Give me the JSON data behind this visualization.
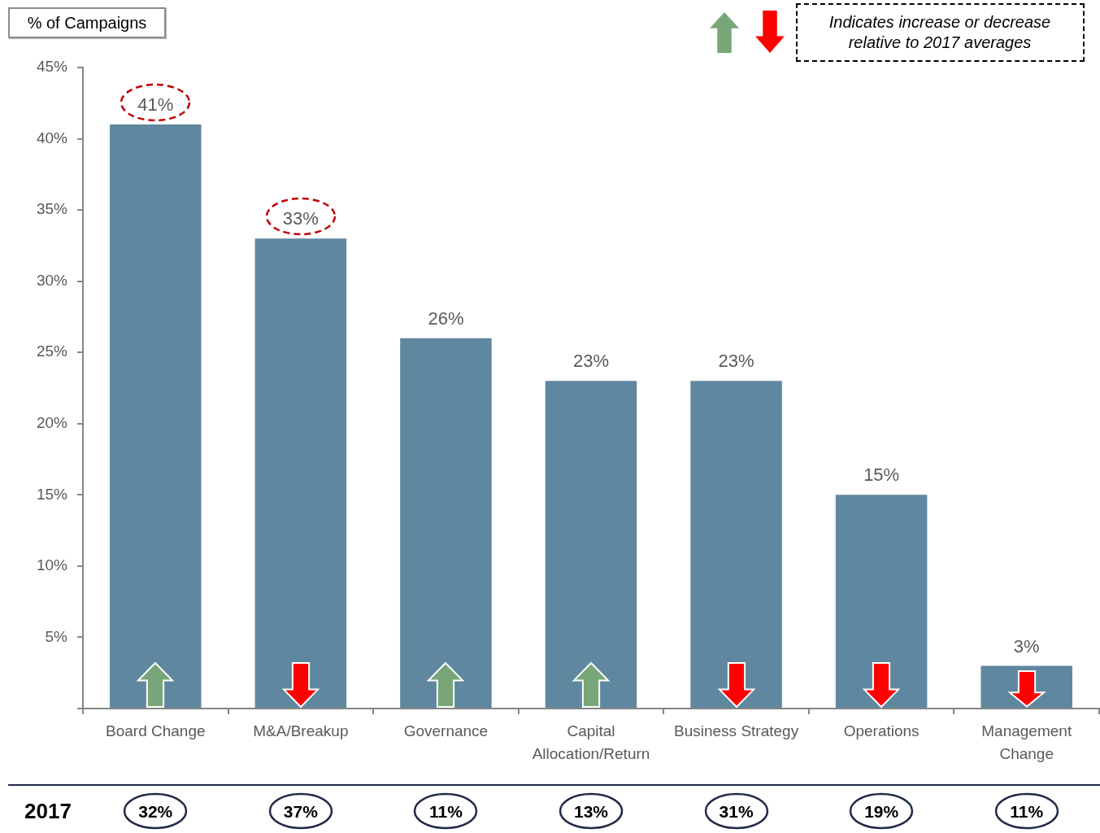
{
  "chart_data": {
    "type": "bar",
    "ylabel": "% of Campaigns",
    "categories": [
      "Board Change",
      "M&A/Breakup",
      "Governance",
      "Capital Allocation/Return",
      "Business Strategy",
      "Operations",
      "Management Change"
    ],
    "values": [
      41,
      33,
      26,
      23,
      23,
      15,
      3
    ],
    "color": "#5f87a0",
    "value_labels": [
      "41%",
      "33%",
      "26%",
      "23%",
      "23%",
      "15%",
      "3%"
    ],
    "ylim": [
      0,
      45
    ],
    "yticks": [
      {
        "value": 0,
        "label": null
      },
      {
        "value": 5,
        "label": "5%"
      },
      {
        "value": 10,
        "label": "10%"
      },
      {
        "value": 15,
        "label": "15%"
      },
      {
        "value": 20,
        "label": "20%"
      },
      {
        "value": 25,
        "label": "25%"
      },
      {
        "value": 30,
        "label": "30%"
      },
      {
        "value": 35,
        "label": "35%"
      },
      {
        "value": 40,
        "label": "40%"
      },
      {
        "value": 45,
        "label": "45%"
      }
    ],
    "grid": false,
    "annotations": [
      "Indicates increase or decrease relative to 2017 averages",
      "2017",
      "32%",
      "37%",
      "11%",
      "13%",
      "31%",
      "19%",
      "11%"
    ]
  }
}
